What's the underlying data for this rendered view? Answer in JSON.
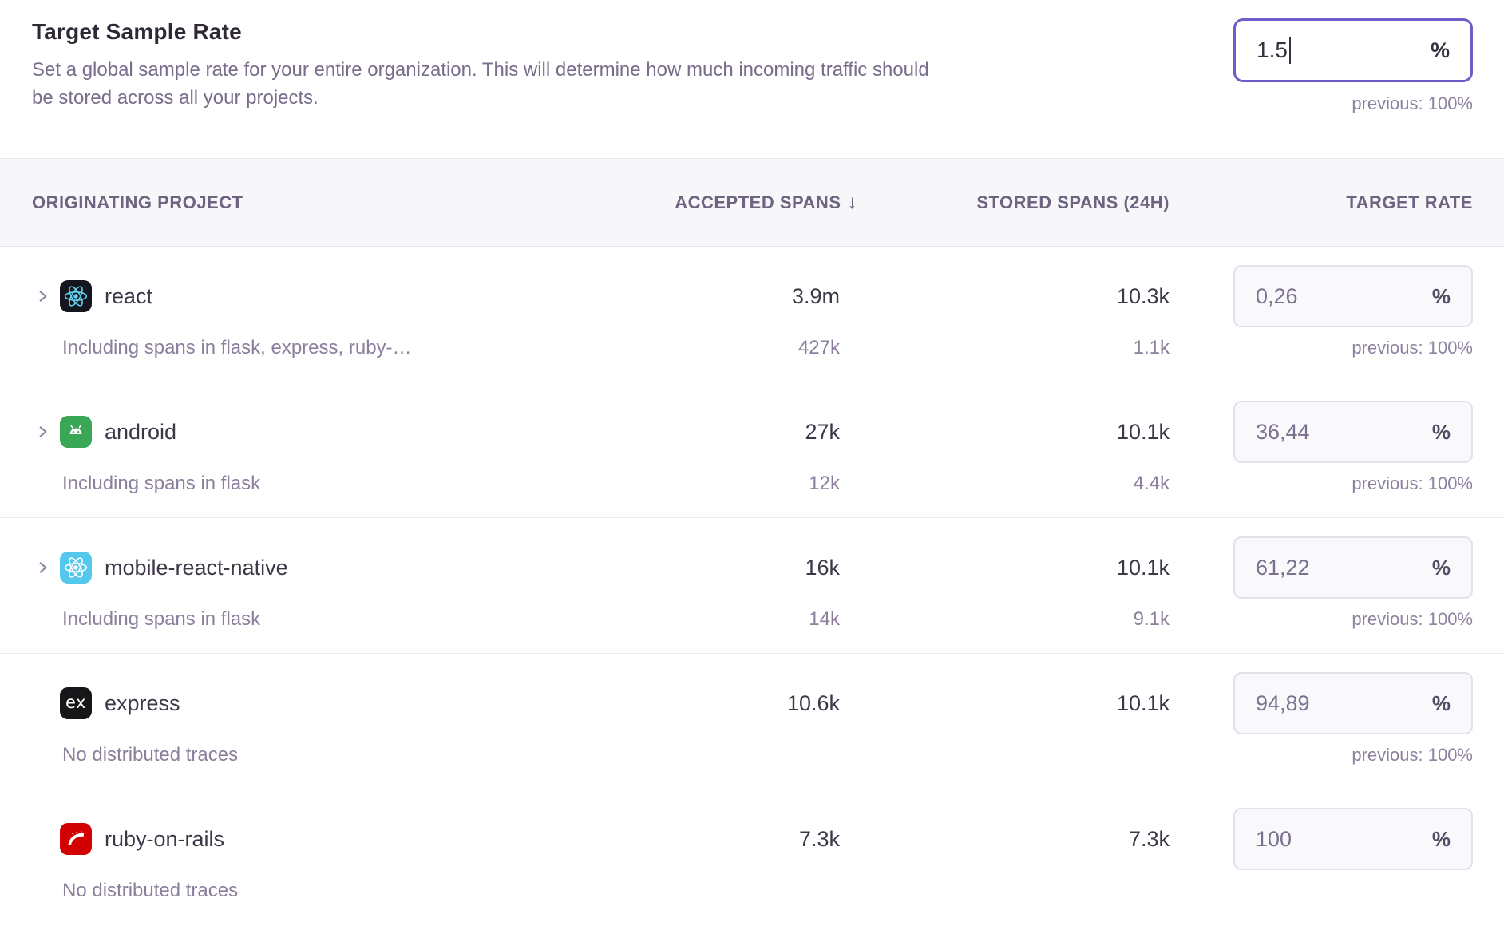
{
  "header": {
    "title": "Target Sample Rate",
    "description": "Set a global sample rate for your entire organization. This will determine how much incoming traffic should be stored across all your projects.",
    "input_value": "1.5",
    "input_suffix": "%",
    "previous_label": "previous: 100%"
  },
  "table": {
    "columns": {
      "project": "ORIGINATING PROJECT",
      "accepted": "ACCEPTED SPANS",
      "stored": "STORED SPANS (24H)",
      "target": "TARGET RATE"
    },
    "sort_icon": "↓",
    "rows": [
      {
        "project": "react",
        "platform": "react",
        "expandable": true,
        "subtext": "Including spans in flask, express, ruby-…",
        "accepted": "3.9m",
        "accepted_sub": "427k",
        "stored": "10.3k",
        "stored_sub": "1.1k",
        "rate": "0,26",
        "rate_suffix": "%",
        "previous": "previous: 100%"
      },
      {
        "project": "android",
        "platform": "android",
        "expandable": true,
        "subtext": "Including spans in flask",
        "accepted": "27k",
        "accepted_sub": "12k",
        "stored": "10.1k",
        "stored_sub": "4.4k",
        "rate": "36,44",
        "rate_suffix": "%",
        "previous": "previous: 100%"
      },
      {
        "project": "mobile-react-native",
        "platform": "react-native",
        "expandable": true,
        "subtext": "Including spans in flask",
        "accepted": "16k",
        "accepted_sub": "14k",
        "stored": "10.1k",
        "stored_sub": "9.1k",
        "rate": "61,22",
        "rate_suffix": "%",
        "previous": "previous: 100%"
      },
      {
        "project": "express",
        "platform": "express",
        "expandable": false,
        "subtext": "No distributed traces",
        "accepted": "10.6k",
        "accepted_sub": "",
        "stored": "10.1k",
        "stored_sub": "",
        "rate": "94,89",
        "rate_suffix": "%",
        "previous": "previous: 100%"
      },
      {
        "project": "ruby-on-rails",
        "platform": "ruby",
        "expandable": false,
        "subtext": "No distributed traces",
        "accepted": "7.3k",
        "accepted_sub": "",
        "stored": "7.3k",
        "stored_sub": "",
        "rate": "100",
        "rate_suffix": "%",
        "previous": ""
      }
    ]
  },
  "colors": {
    "accent_focus_border": "#6c5ec9",
    "header_band_bg": "#f7f7f9",
    "text_dark": "#3e3748",
    "text_muted": "#8b7f9c",
    "react_icon_bg": "#15151e",
    "react_logo": "#5ed3f2",
    "android_icon_bg": "#3aa757",
    "react_native_icon_bg": "#54c7ec",
    "express_icon_bg": "#17171a",
    "rails_icon_bg": "#d20000"
  }
}
